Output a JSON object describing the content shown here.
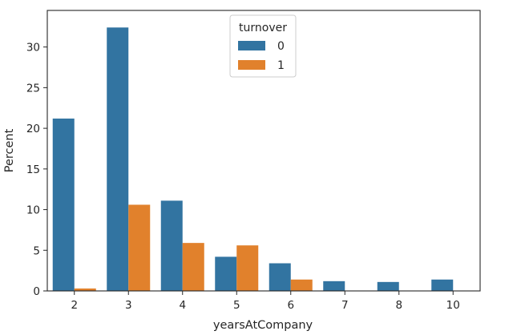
{
  "chart_data": {
    "type": "bar",
    "xlabel": "yearsAtCompany",
    "ylabel": "Percent",
    "categories": [
      "2",
      "3",
      "4",
      "5",
      "6",
      "7",
      "8",
      "10"
    ],
    "series": [
      {
        "name": "0",
        "color": "#3274a1",
        "values": [
          21.2,
          32.4,
          11.1,
          4.2,
          3.4,
          1.2,
          1.1,
          1.4
        ]
      },
      {
        "name": "1",
        "color": "#e1812c",
        "values": [
          0.3,
          10.6,
          5.9,
          5.6,
          1.4,
          0,
          0,
          0
        ]
      }
    ],
    "ylim": [
      0,
      34.5
    ],
    "yticks": [
      0,
      5,
      10,
      15,
      20,
      25,
      30
    ],
    "legend": {
      "title": "turnover",
      "placement": "top-center"
    },
    "grid": false
  }
}
